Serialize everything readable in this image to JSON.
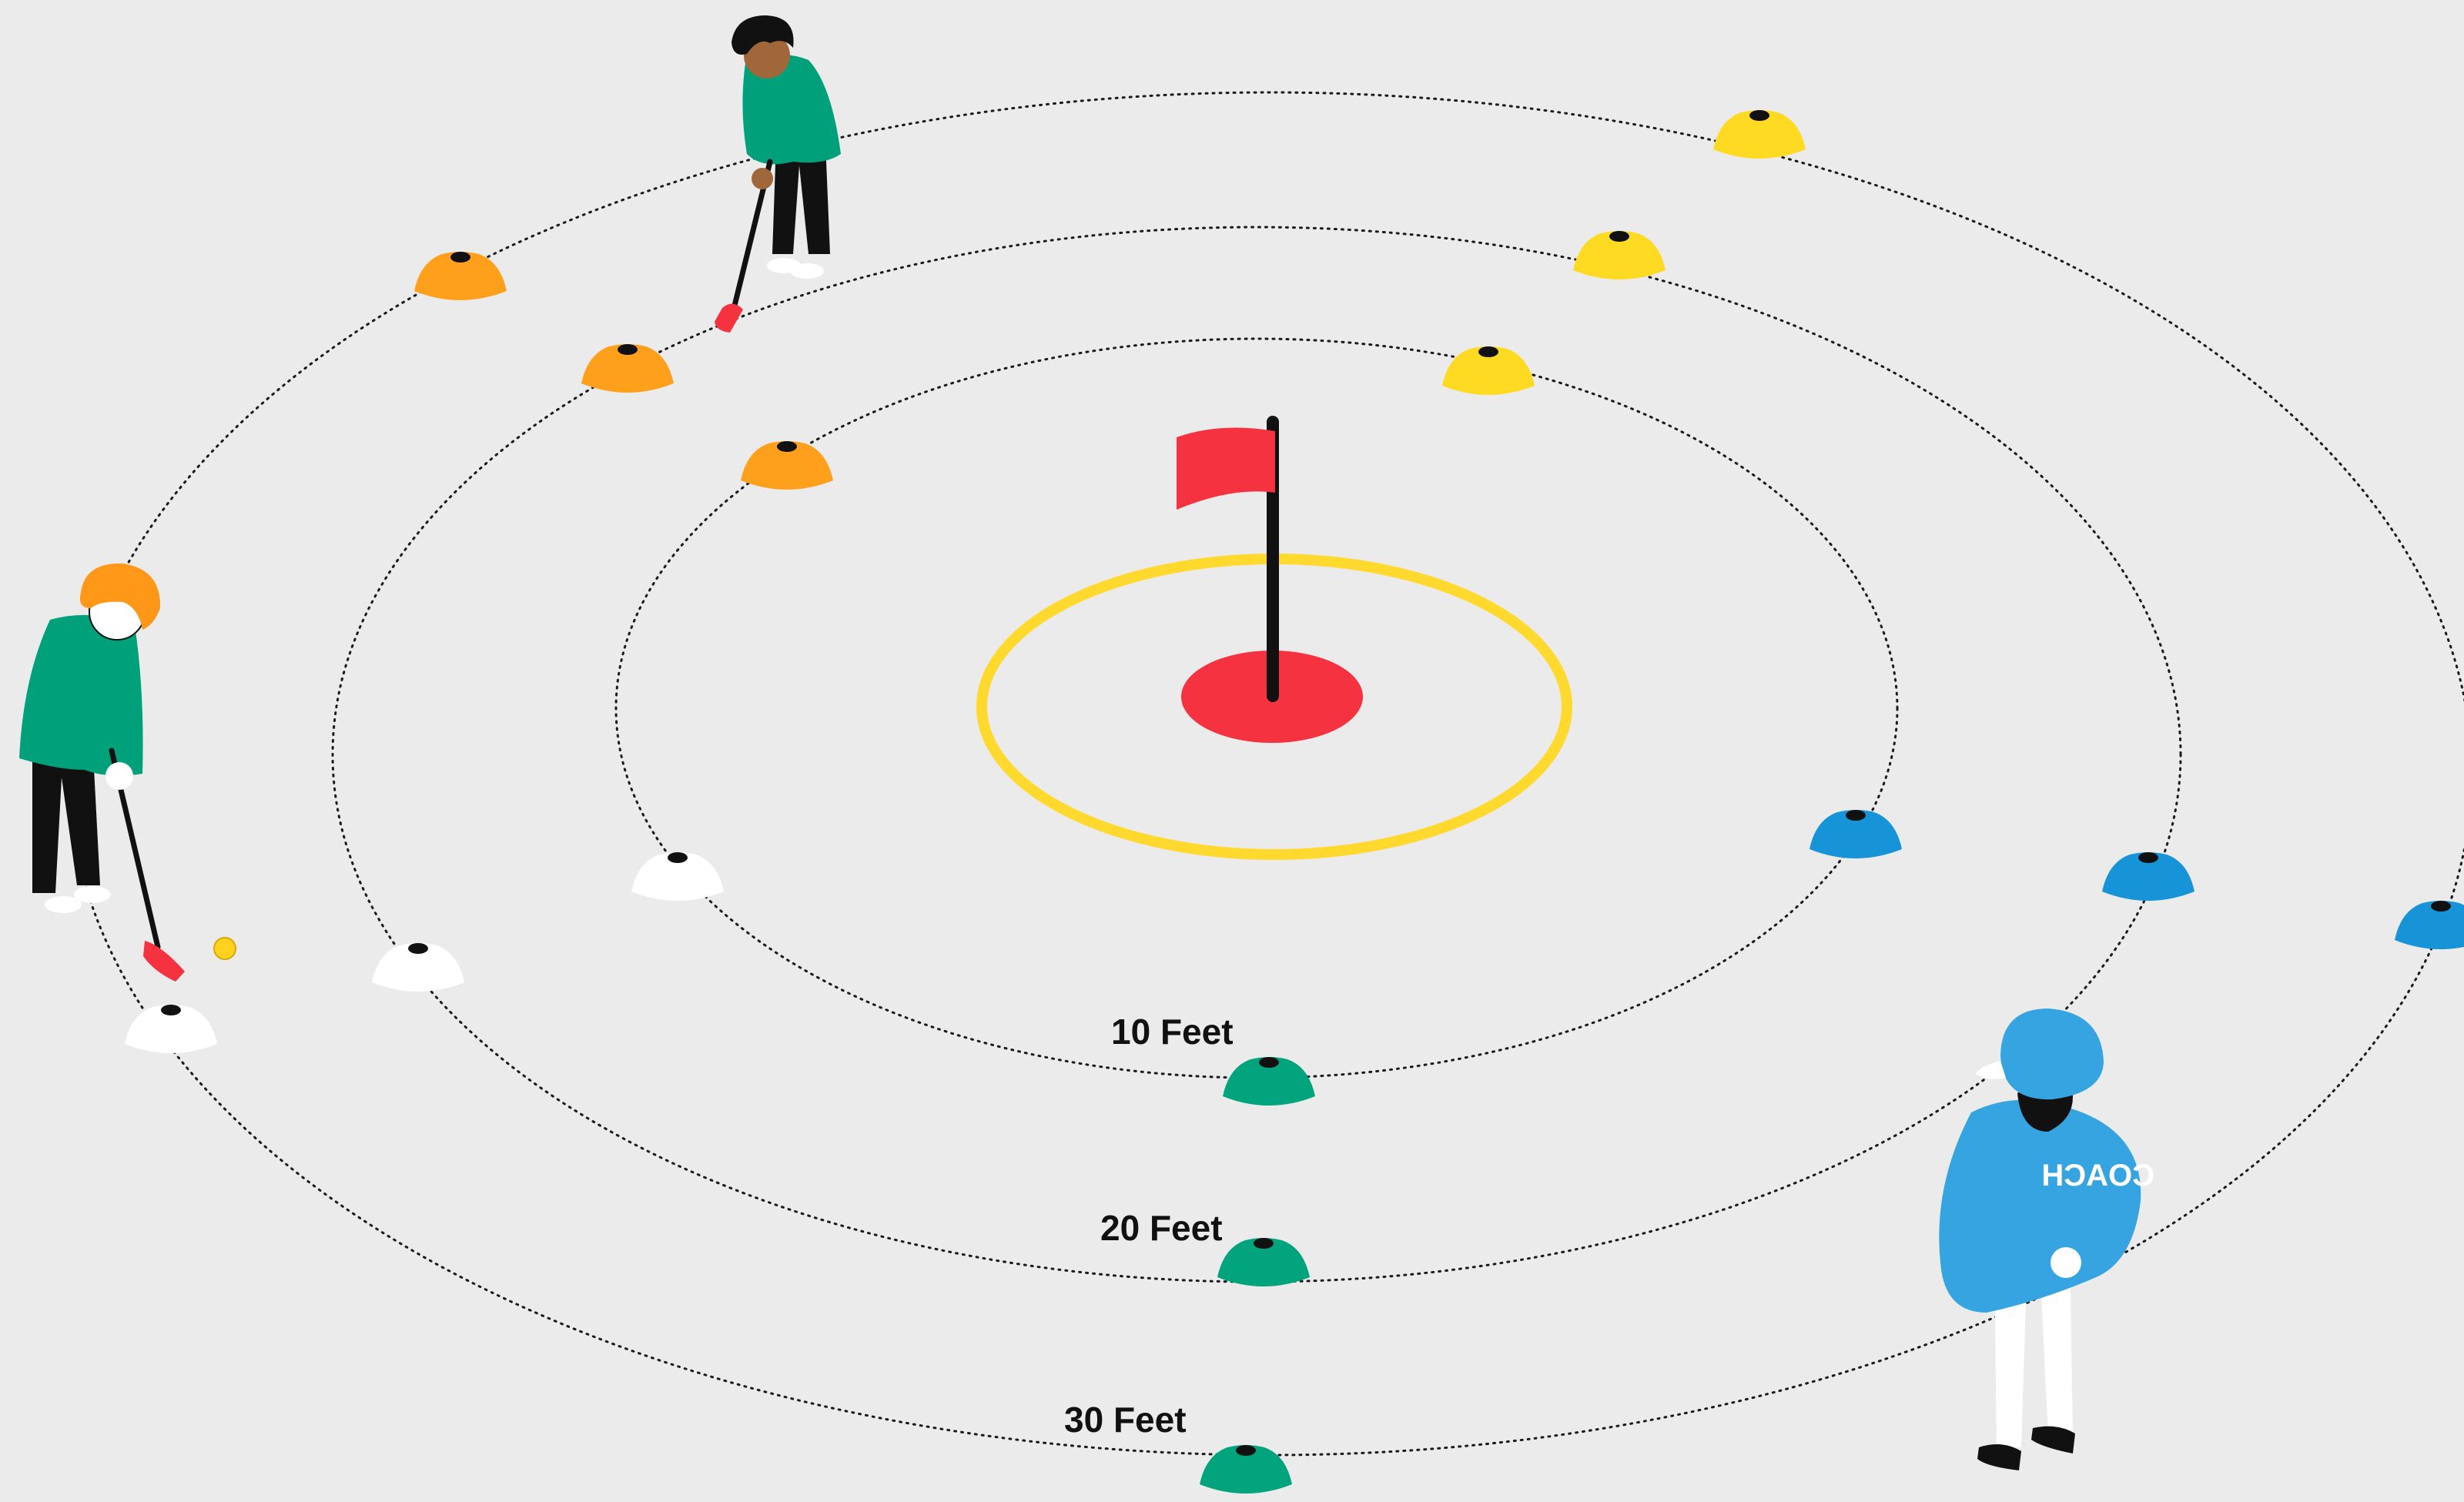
{
  "colors": {
    "background": "#ebebeb",
    "ring_line": "#1a1a1a",
    "hole_ring": "#ffd92e",
    "hole_red": "#f5323f",
    "flag_red": "#f5323f",
    "cone_orange": "#ffa01c",
    "cone_yellow": "#ffda22",
    "cone_blue": "#1793d8",
    "cone_white": "#ffffff",
    "cone_green": "#02a47e",
    "player_shirt": "#00a07a",
    "coach_blue": "#35a4e0"
  },
  "rings": [
    {
      "label": "10 Feet"
    },
    {
      "label": "20 Feet"
    },
    {
      "label": "30 Feet"
    }
  ],
  "coach": {
    "shirt_text": "COACH"
  },
  "icons": {
    "flag": "flag-icon",
    "hole": "hole-icon",
    "cone": "cone-icon",
    "ball": "golf-ball-icon",
    "player": "golfer-figure",
    "coach": "coach-figure"
  }
}
